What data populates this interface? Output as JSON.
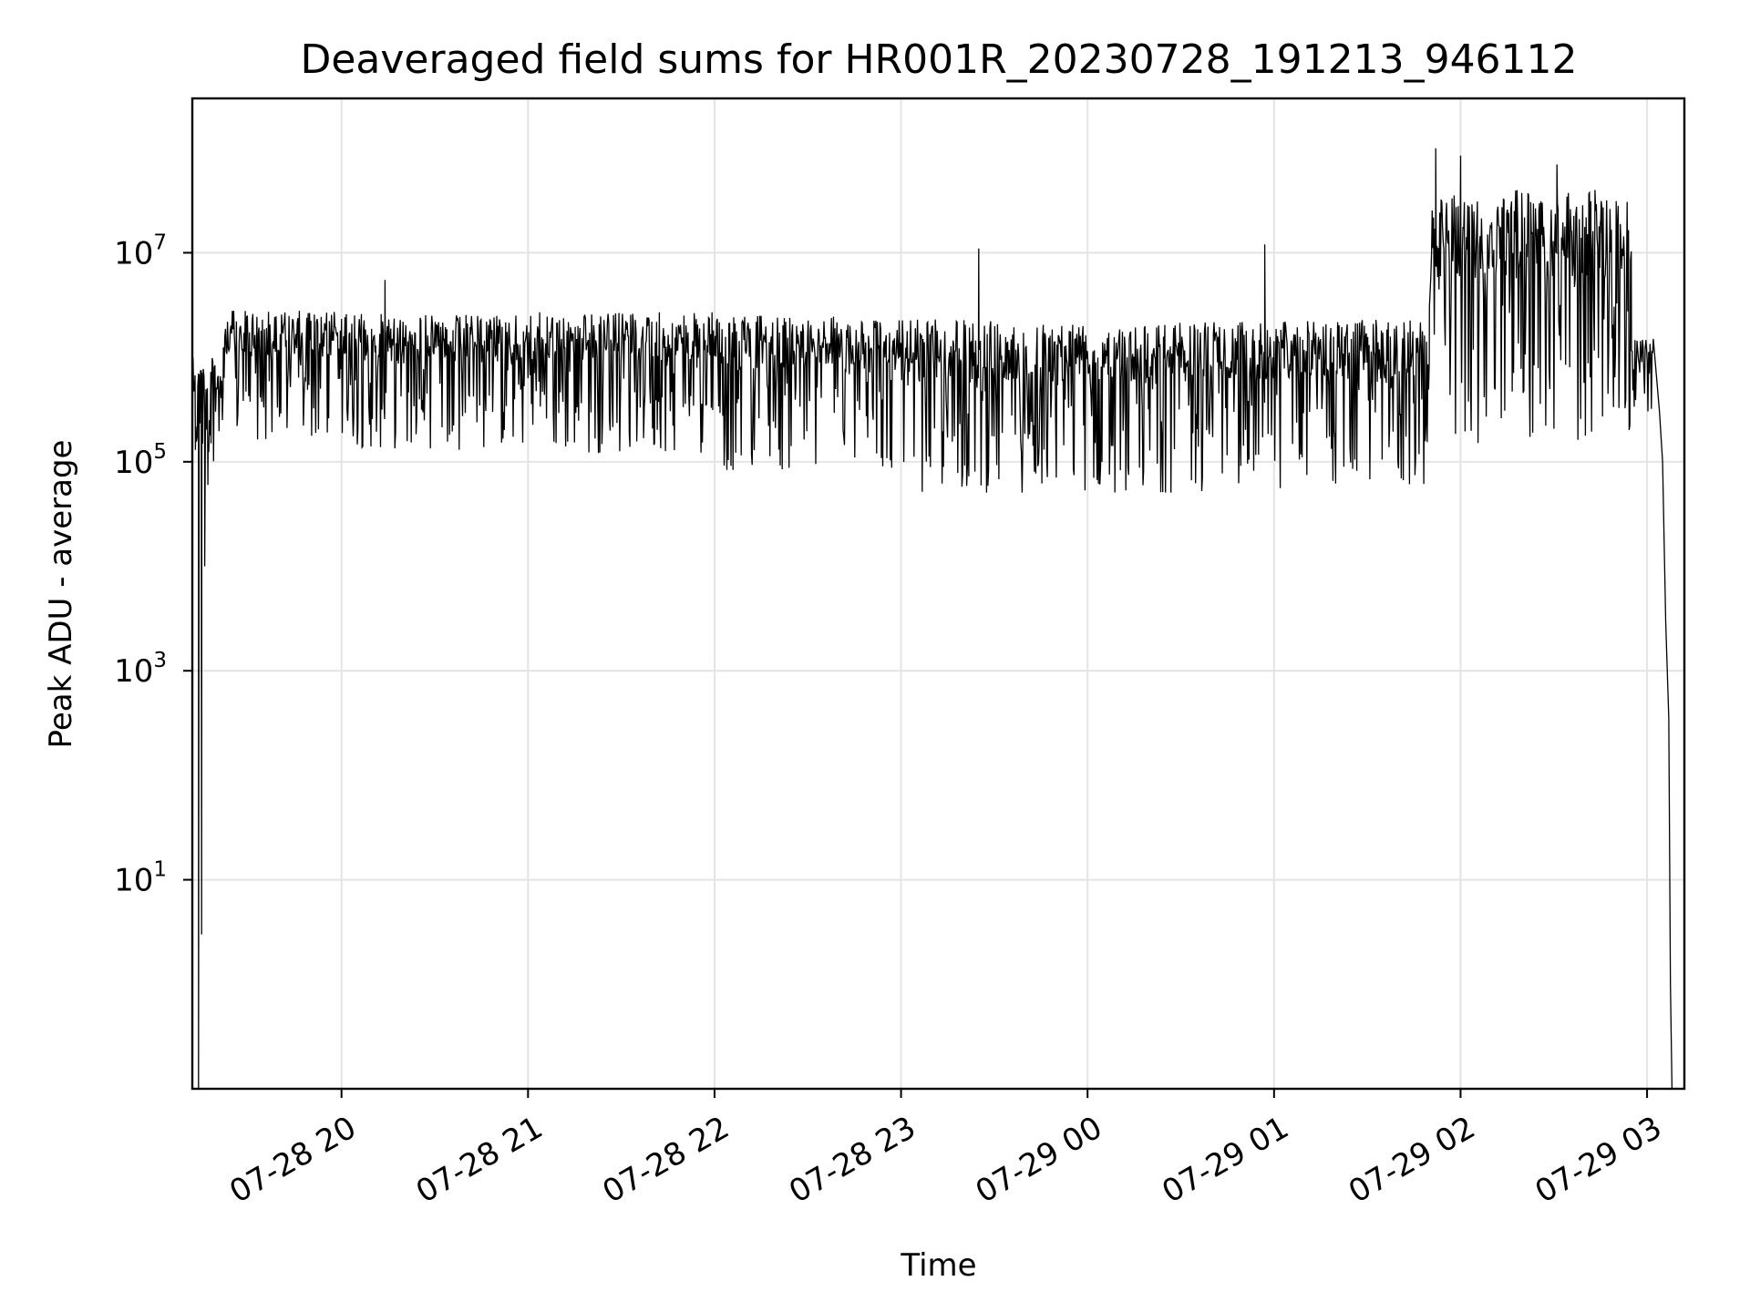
{
  "chart_data": {
    "type": "line",
    "title": "Deaveraged field sums for HR001R_20230728_191213_946112",
    "xlabel": "Time",
    "ylabel": "Peak ADU - average",
    "x_axis": {
      "type": "time",
      "range": [
        "07-28 19:12",
        "07-29 03:12"
      ],
      "ticks": [
        "07-28 20",
        "07-28 21",
        "07-28 22",
        "07-28 23",
        "07-29 00",
        "07-29 01",
        "07-29 02",
        "07-29 03"
      ]
    },
    "y_axis": {
      "scale": "log",
      "range": [
        0.1,
        300000000
      ],
      "ticks": [
        {
          "base": "10",
          "exp": "1",
          "value": 10
        },
        {
          "base": "10",
          "exp": "3",
          "value": 1000
        },
        {
          "base": "10",
          "exp": "5",
          "value": 100000
        },
        {
          "base": "10",
          "exp": "7",
          "value": 10000000
        }
      ]
    },
    "grid": true,
    "series": [
      {
        "color": "#000000",
        "segments": [
          {
            "from": "07-28 19:12",
            "to": "07-28 19:22",
            "low": 100000,
            "high": 1000000
          },
          {
            "from": "07-28 19:22",
            "to": "07-28 20:00",
            "low": 150000,
            "high": 2800000
          },
          {
            "from": "07-28 20:00",
            "to": "07-28 21:00",
            "low": 130000,
            "high": 2600000
          },
          {
            "from": "07-28 21:00",
            "to": "07-28 22:00",
            "low": 120000,
            "high": 2700000
          },
          {
            "from": "07-28 22:00",
            "to": "07-28 23:00",
            "low": 80000,
            "high": 2500000
          },
          {
            "from": "07-28 23:00",
            "to": "07-29 00:00",
            "low": 50000,
            "high": 2300000
          },
          {
            "from": "07-29 00:00",
            "to": "07-29 01:00",
            "low": 50000,
            "high": 2200000
          },
          {
            "from": "07-29 01:00",
            "to": "07-29 01:50",
            "low": 55000,
            "high": 2300000
          },
          {
            "from": "07-29 01:50",
            "to": "07-29 02:55",
            "low": 150000,
            "high": 40000000
          },
          {
            "from": "07-29 02:55",
            "to": "07-29 03:02",
            "low": 300000,
            "high": 1500000
          }
        ],
        "spikes": [
          {
            "time": "07-28 20:14",
            "value": 5500000
          },
          {
            "time": "07-28 23:25",
            "value": 11000000
          },
          {
            "time": "07-29 00:57",
            "value": 12000000
          },
          {
            "time": "07-29 01:52",
            "value": 100000000
          },
          {
            "time": "07-29 02:00",
            "value": 85000000
          },
          {
            "time": "07-29 02:31",
            "value": 70000000
          },
          {
            "time": "07-29 02:45",
            "value": 20000000
          }
        ],
        "ramp_up": [
          {
            "time": "07-28 19:12",
            "value": 0.1
          },
          {
            "time": "07-28 19:13",
            "value": 130000
          },
          {
            "time": "07-28 19:14",
            "value": 0.1
          },
          {
            "time": "07-28 19:15",
            "value": 3
          },
          {
            "time": "07-28 19:16",
            "value": 10000
          },
          {
            "time": "07-28 19:17",
            "value": 60000
          },
          {
            "time": "07-28 19:18",
            "value": 150000
          },
          {
            "time": "07-28 19:20",
            "value": 500000
          }
        ],
        "ramp_down": [
          {
            "time": "07-29 03:02",
            "value": 1500000
          },
          {
            "time": "07-29 03:04",
            "value": 300000
          },
          {
            "time": "07-29 03:05",
            "value": 100000
          },
          {
            "time": "07-29 03:06",
            "value": 3000
          },
          {
            "time": "07-29 03:07",
            "value": 350
          },
          {
            "time": "07-29 03:07:30",
            "value": 1
          },
          {
            "time": "07-29 03:08",
            "value": 0.1
          }
        ]
      }
    ]
  }
}
